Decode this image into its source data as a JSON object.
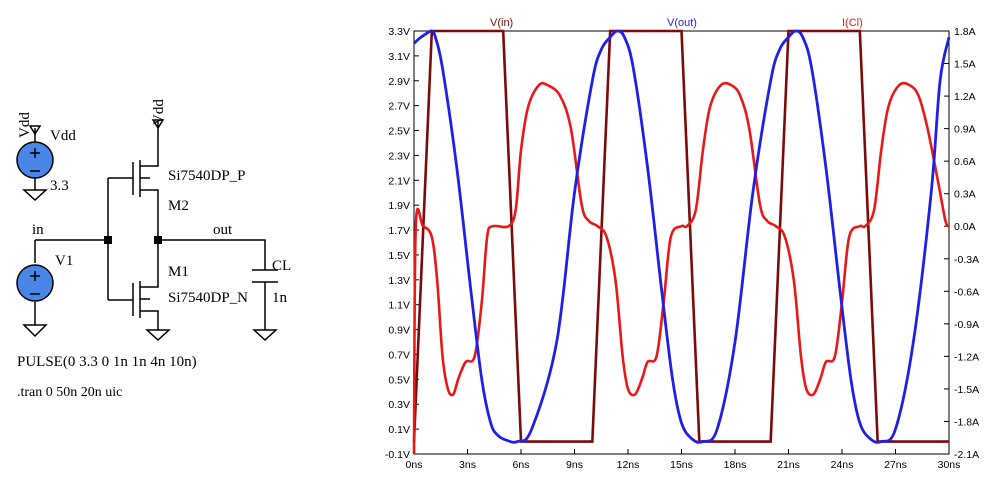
{
  "schematic": {
    "vdd_source": {
      "name": "Vdd",
      "value": "3.3"
    },
    "input_source": {
      "name": "V1"
    },
    "pmos": {
      "name": "M2",
      "model": "Si7540DP_P"
    },
    "nmos": {
      "name": "M1",
      "model": "Si7540DP_N"
    },
    "load_cap": {
      "name": "CL",
      "value": "1n"
    },
    "nets": {
      "vdd": "Vdd",
      "in": "in",
      "out": "out"
    },
    "directives": [
      "PULSE(0 3.3 0 1n 1n 4n 10n)",
      ".tran 0 50n 20n uic"
    ]
  },
  "chart_data": {
    "type": "line",
    "traces": [
      {
        "name": "V(in)",
        "color": "#7b0a0a",
        "axis": "left"
      },
      {
        "name": "V(out)",
        "color": "#1f1fe6",
        "axis": "left"
      },
      {
        "name": "I(Cl)",
        "color": "#e81818",
        "axis": "right"
      }
    ],
    "x_ticks": [
      "0ns",
      "3ns",
      "6ns",
      "9ns",
      "12ns",
      "15ns",
      "18ns",
      "21ns",
      "24ns",
      "27ns",
      "30ns"
    ],
    "xlim_ns": [
      0,
      30
    ],
    "y_left_ticks": [
      "-0.1V",
      "0.1V",
      "0.3V",
      "0.5V",
      "0.7V",
      "0.9V",
      "1.1V",
      "1.3V",
      "1.5V",
      "1.7V",
      "1.9V",
      "2.1V",
      "2.3V",
      "2.5V",
      "2.7V",
      "2.9V",
      "3.1V",
      "3.3V"
    ],
    "ylim_left_V": [
      -0.1,
      3.3
    ],
    "y_right_ticks": [
      "-2.1A",
      "-1.8A",
      "-1.5A",
      "-1.2A",
      "-0.9A",
      "-0.6A",
      "-0.3A",
      "0.0A",
      "0.3A",
      "0.6A",
      "0.9A",
      "1.2A",
      "1.5A",
      "1.8A"
    ],
    "ylim_right_A": [
      -2.1,
      1.8
    ],
    "v_in": {
      "x": [
        0,
        1,
        5,
        6,
        10,
        11,
        15,
        16,
        20,
        21,
        25,
        26,
        30
      ],
      "y": [
        0,
        3.3,
        3.3,
        0,
        0,
        3.3,
        3.3,
        0,
        0,
        3.3,
        3.3,
        0,
        0
      ]
    },
    "v_out": {
      "x": [
        0,
        0.3,
        0.7,
        1.0,
        1.2,
        1.6,
        2.4,
        3.2,
        3.8,
        4.3,
        4.7,
        5.2,
        5.8,
        6.6,
        8,
        9,
        10,
        10.5,
        11.0,
        11.4,
        11.8,
        12.3,
        13.1,
        13.9,
        14.5,
        15.0,
        15.6,
        16.2,
        17,
        18,
        19,
        20,
        20.5,
        21.0,
        21.4,
        21.8,
        22.3,
        23.1,
        23.9,
        24.5,
        25.0,
        25.6,
        26.2,
        27,
        28,
        29,
        29.5,
        30
      ],
      "y": [
        3.2,
        3.24,
        3.28,
        3.3,
        3.25,
        3.0,
        2.2,
        1.2,
        0.5,
        0.15,
        0.05,
        0.01,
        0.0,
        0.1,
        0.8,
        2.0,
        2.9,
        3.15,
        3.25,
        3.3,
        3.25,
        3.0,
        2.2,
        1.2,
        0.5,
        0.15,
        0.02,
        0.0,
        0.1,
        0.8,
        2.0,
        2.9,
        3.15,
        3.25,
        3.3,
        3.25,
        3.0,
        2.2,
        1.2,
        0.5,
        0.15,
        0.02,
        0.0,
        0.1,
        0.8,
        2.0,
        2.9,
        3.25
      ]
    },
    "i_cl": {
      "x": [
        0,
        0.1,
        0.5,
        1.0,
        1.3,
        1.6,
        1.9,
        2.2,
        2.5,
        2.9,
        3.4,
        3.8,
        4.1,
        4.4,
        5.3,
        5.7,
        6.0,
        6.4,
        7.0,
        7.5,
        8.2,
        8.8,
        9.4,
        9.8,
        10.3,
        10.8,
        11.3,
        11.7,
        12.0,
        12.4,
        12.8,
        13.1,
        13.6,
        14.0,
        14.4,
        15.0,
        15.3,
        15.8,
        16.2,
        16.6,
        17.2,
        17.8,
        18.3,
        18.8,
        19.4,
        19.8,
        20.3,
        20.8,
        21.3,
        21.7,
        22.0,
        22.4,
        22.8,
        23.1,
        23.6,
        24.0,
        24.4,
        25.0,
        25.3,
        25.8,
        26.2,
        26.6,
        27.2,
        27.8,
        28.3,
        28.8,
        29.4,
        29.8,
        30
      ],
      "y": [
        -2.1,
        0.0,
        0.0,
        -0.1,
        -0.5,
        -1.2,
        -1.5,
        -1.55,
        -1.4,
        -1.25,
        -1.2,
        -0.7,
        -0.1,
        0.0,
        0.0,
        0.15,
        0.7,
        1.1,
        1.3,
        1.3,
        1.2,
        0.9,
        0.2,
        0.05,
        0.0,
        -0.1,
        -0.5,
        -1.2,
        -1.5,
        -1.55,
        -1.4,
        -1.25,
        -1.2,
        -0.7,
        -0.1,
        0.0,
        0.0,
        0.15,
        0.7,
        1.1,
        1.3,
        1.3,
        1.2,
        0.9,
        0.2,
        0.05,
        0.0,
        -0.1,
        -0.5,
        -1.2,
        -1.5,
        -1.55,
        -1.4,
        -1.25,
        -1.2,
        -0.7,
        -0.1,
        0.0,
        0.0,
        0.15,
        0.7,
        1.1,
        1.3,
        1.3,
        1.2,
        0.9,
        0.4,
        0.05,
        0.0
      ]
    },
    "grid": false
  }
}
